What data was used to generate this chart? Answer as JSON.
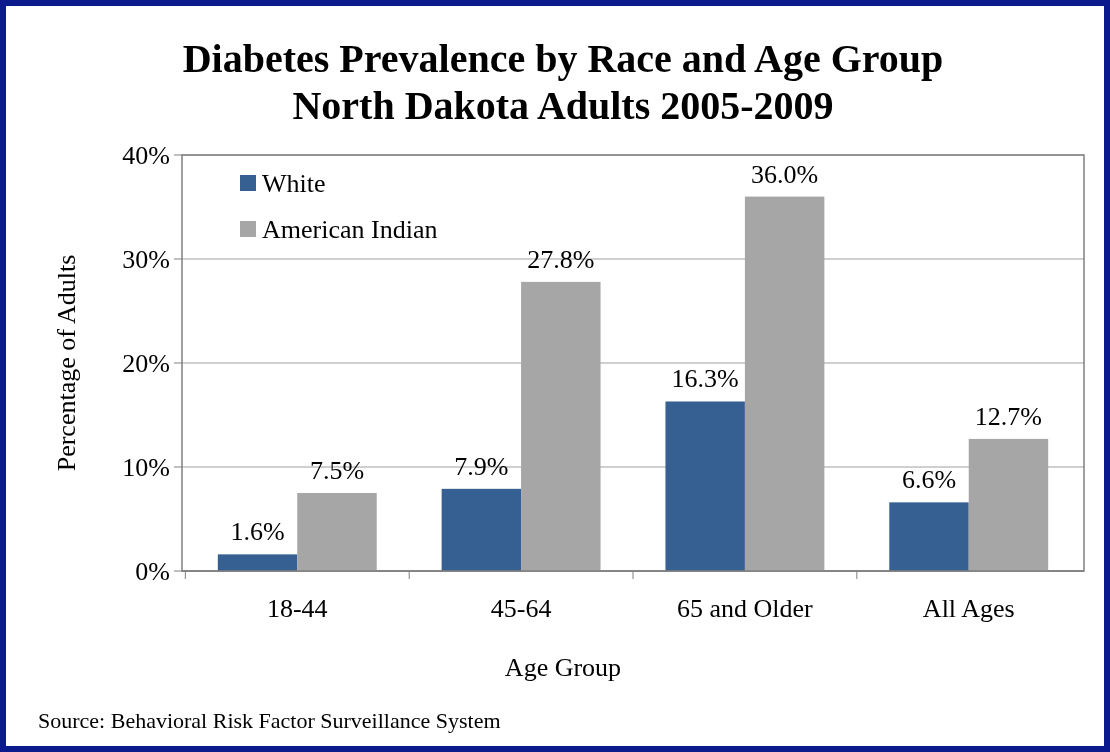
{
  "chart_data": {
    "type": "bar",
    "title": "Diabetes Prevalence by Race and Age Group\nNorth Dakota Adults 2005-2009",
    "xlabel": "Age Group",
    "ylabel": "Percentage of Adults",
    "categories": [
      "18-44",
      "45-64",
      "65 and Older",
      "All Ages"
    ],
    "series": [
      {
        "name": "White",
        "color": "#376092",
        "values": [
          1.6,
          7.9,
          16.3,
          6.6
        ],
        "value_labels": [
          "1.6%",
          "7.9%",
          "16.3%",
          "6.6%"
        ]
      },
      {
        "name": "American Indian",
        "color": "#a6a6a6",
        "values": [
          7.5,
          27.8,
          36.0,
          12.7
        ],
        "value_labels": [
          "7.5%",
          "27.8%",
          "36.0%",
          "12.7%"
        ]
      }
    ],
    "ylim": [
      0,
      40
    ],
    "yticks": [
      {
        "value": 0,
        "label": "0%"
      },
      {
        "value": 10,
        "label": "10%"
      },
      {
        "value": 20,
        "label": "20%"
      },
      {
        "value": 30,
        "label": "30%"
      },
      {
        "value": 40,
        "label": "40%"
      }
    ],
    "grid": "y",
    "legend": "top left",
    "annotations": [
      "Source: Behavioral Risk Factor Surveillance System"
    ]
  }
}
